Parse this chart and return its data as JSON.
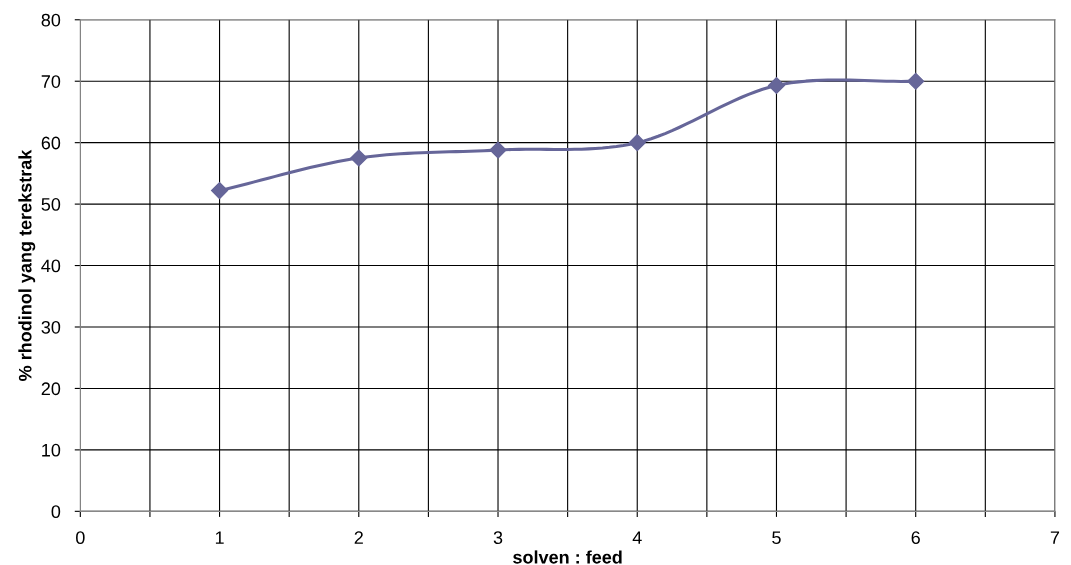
{
  "chart_data": {
    "type": "line",
    "xlabel": "solven : feed",
    "ylabel": "% rhodinol yang terekstrak",
    "x": [
      1,
      2,
      3,
      4,
      5,
      6
    ],
    "series": [
      {
        "color": "#666699",
        "values": [
          52.2,
          57.5,
          58.8,
          60.0,
          69.3,
          70.0
        ]
      }
    ],
    "xlim": [
      0,
      7
    ],
    "xticks": [
      0,
      {
        "value": 0.5,
        "label": null
      },
      1,
      {
        "value": 1.5,
        "label": null
      },
      2,
      {
        "value": 2.5,
        "label": null
      },
      3,
      {
        "value": 3.5,
        "label": null
      },
      4,
      {
        "value": 4.5,
        "label": null
      },
      5,
      {
        "value": 5.5,
        "label": null
      },
      6,
      {
        "value": 6.5,
        "label": null
      },
      7
    ],
    "ylim": [
      0,
      80
    ],
    "yticks": [
      0,
      10,
      20,
      30,
      40,
      50,
      60,
      70,
      80
    ],
    "grid": true,
    "marker": "diamond",
    "line_style": "solid",
    "legend": false
  }
}
